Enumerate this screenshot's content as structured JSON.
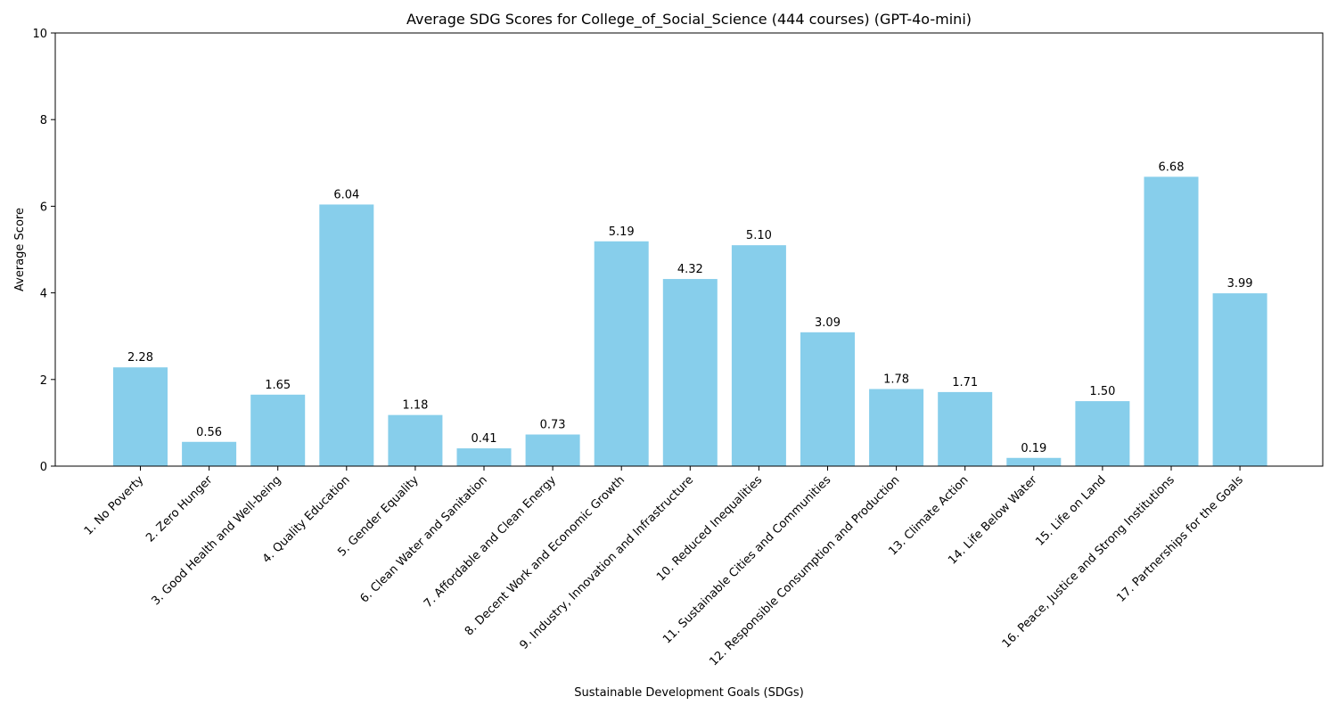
{
  "chart_data": {
    "type": "bar",
    "title": "Average SDG Scores for College_of_Social_Science (444 courses) (GPT-4o-mini)",
    "xlabel": "Sustainable Development Goals (SDGs)",
    "ylabel": "Average Score",
    "ylim": [
      0,
      10
    ],
    "yticks": [
      0,
      2,
      4,
      6,
      8,
      10
    ],
    "grid": false,
    "bar_color": "#87ceeb",
    "categories": [
      "1. No Poverty",
      "2. Zero Hunger",
      "3. Good Health and Well-being",
      "4. Quality Education",
      "5. Gender Equality",
      "6. Clean Water and Sanitation",
      "7. Affordable and Clean Energy",
      "8. Decent Work and Economic Growth",
      "9. Industry, Innovation and Infrastructure",
      "10. Reduced Inequalities",
      "11. Sustainable Cities and Communities",
      "12. Responsible Consumption and Production",
      "13. Climate Action",
      "14. Life Below Water",
      "15. Life on Land",
      "16. Peace, Justice and Strong Institutions",
      "17. Partnerships for the Goals"
    ],
    "values": [
      2.28,
      0.56,
      1.65,
      6.04,
      1.18,
      0.41,
      0.73,
      5.19,
      4.32,
      5.1,
      3.09,
      1.78,
      1.71,
      0.19,
      1.5,
      6.68,
      3.99
    ],
    "value_labels": [
      "2.28",
      "0.56",
      "1.65",
      "6.04",
      "1.18",
      "0.41",
      "0.73",
      "5.19",
      "4.32",
      "5.10",
      "3.09",
      "1.78",
      "1.71",
      "0.19",
      "1.50",
      "6.68",
      "3.99"
    ]
  }
}
